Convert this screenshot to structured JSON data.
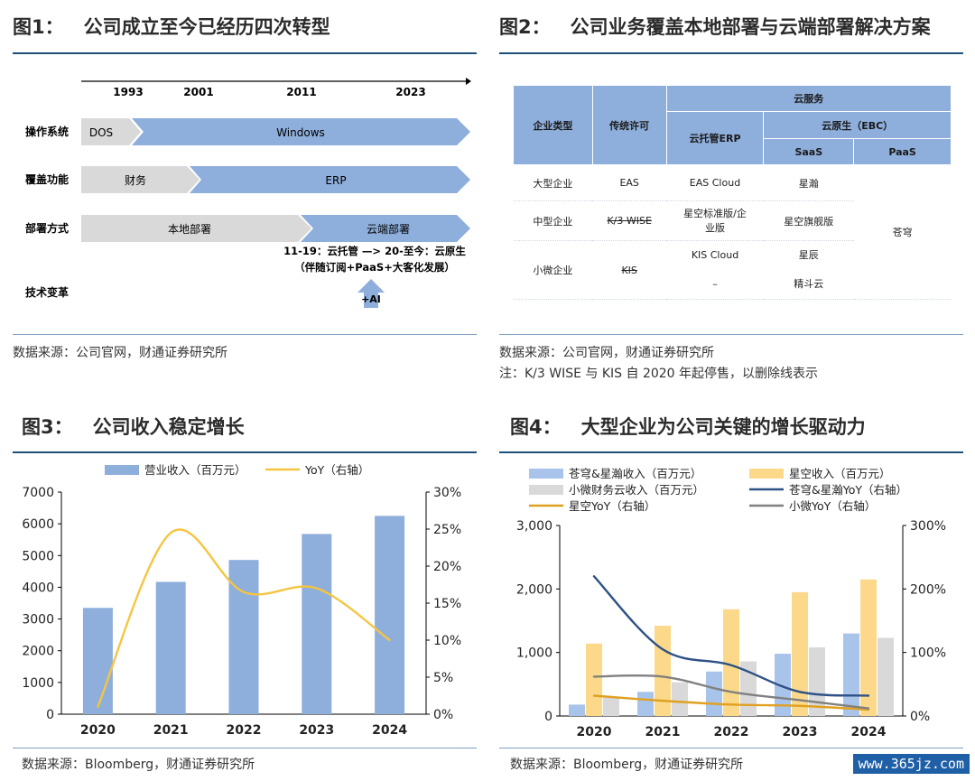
{
  "fig1": {
    "num": "图1：",
    "title": "公司成立至今已经历四次转型",
    "years": [
      "1993",
      "2001",
      "2011",
      "2023"
    ],
    "row_labels": [
      "操作系统",
      "覆盖功能",
      "部署方式",
      "技术变革"
    ],
    "os": {
      "dos": "DOS",
      "windows": "Windows"
    },
    "func": {
      "finance": "财务",
      "erp": "ERP"
    },
    "deploy": {
      "local": "本地部署",
      "cloud": "云端部署"
    },
    "note_line1": "11-19：云托管 —> 20-至今：云原生",
    "note_line2": "（伴随订阅+PaaS+大客化发展）",
    "ai": "+AI",
    "source": "数据来源：公司官网，财通证券研究所"
  },
  "fig2": {
    "num": "图2：",
    "title": "公司业务覆盖本地部署与云端部署解决方案",
    "headers": {
      "type": "企业类型",
      "license": "传统许可",
      "cloud": "云服务",
      "hosted": "云托管ERP",
      "native": "云原生（EBC）",
      "saas": "SaaS",
      "paas": "PaaS"
    },
    "rows": [
      {
        "type": "大型企业",
        "license": "EAS",
        "hosted": "EAS Cloud",
        "saas": "星瀚"
      },
      {
        "type": "中型企业",
        "license": "K/3 WISE",
        "hosted": "星空标准版/企业版",
        "saas": "星空旗舰版"
      },
      {
        "type": "小微企业",
        "license": "KIS",
        "hosted": "KIS Cloud",
        "hosted2": "–",
        "saas": "星辰",
        "saas2": "精斗云"
      }
    ],
    "paas_value": "苍穹",
    "source": "数据来源：公司官网，财通证券研究所",
    "note": "注：K/3 WISE 与 KIS 自 2020 年起停售，以删除线表示"
  },
  "fig3": {
    "num": "图3：",
    "title": "公司收入稳定增长",
    "source": "数据来源：Bloomberg，财通证券研究所"
  },
  "fig4": {
    "num": "图4：",
    "title": "大型企业为公司关键的增长驱动力",
    "source": "数据来源：Bloomberg，财通证券研究所"
  },
  "watermark": "www.365jz.com",
  "chart_data": [
    {
      "type": "bar",
      "categories": [
        "2020",
        "2021",
        "2022",
        "2023",
        "2024"
      ],
      "series": [
        {
          "name": "营业收入（百万元）",
          "axis": "left",
          "kind": "bar",
          "values": [
            3350,
            4170,
            4860,
            5680,
            6250
          ],
          "color": "#8eaedb"
        },
        {
          "name": "YoY（右轴）",
          "axis": "right",
          "kind": "line",
          "values": [
            1.0,
            24.5,
            16.5,
            17.0,
            10.0
          ],
          "color": "#f5c542"
        }
      ],
      "ylim": [
        0,
        7000
      ],
      "yticks": [
        "0",
        "1000",
        "2000",
        "3000",
        "4000",
        "5000",
        "6000",
        "7000"
      ],
      "y2lim": [
        0,
        30
      ],
      "y2ticks": [
        "0%",
        "5%",
        "10%",
        "15%",
        "20%",
        "25%",
        "30%"
      ]
    },
    {
      "type": "bar",
      "categories": [
        "2020",
        "2021",
        "2022",
        "2023",
        "2024"
      ],
      "series": [
        {
          "name": "苍穹&星瀚收入（百万元）",
          "axis": "left",
          "kind": "bar",
          "values": [
            180,
            380,
            700,
            980,
            1300
          ],
          "color": "#a9c4ea"
        },
        {
          "name": "星空收入（百万元）",
          "axis": "left",
          "kind": "bar",
          "values": [
            1140,
            1420,
            1680,
            1950,
            2150
          ],
          "color": "#fcd98a"
        },
        {
          "name": "小微财务云收入（百万元）",
          "axis": "left",
          "kind": "bar",
          "values": [
            290,
            530,
            860,
            1080,
            1230
          ],
          "color": "#d9d9d9"
        },
        {
          "name": "苍穹&星瀚YoY（右轴）",
          "axis": "right",
          "kind": "line",
          "values": [
            220,
            105,
            80,
            38,
            32
          ],
          "color": "#2e5286"
        },
        {
          "name": "星空YoY（右轴）",
          "axis": "right",
          "kind": "line",
          "values": [
            32,
            24,
            18,
            16,
            10
          ],
          "color": "#e0a020"
        },
        {
          "name": "小微YoY（右轴）",
          "axis": "right",
          "kind": "line",
          "values": [
            62,
            62,
            38,
            25,
            12
          ],
          "color": "#808080"
        }
      ],
      "ylim": [
        0,
        3000
      ],
      "yticks": [
        "0",
        "1,000",
        "2,000",
        "3,000"
      ],
      "y2lim": [
        0,
        300
      ],
      "y2ticks": [
        "0%",
        "100%",
        "200%",
        "300%"
      ]
    }
  ]
}
